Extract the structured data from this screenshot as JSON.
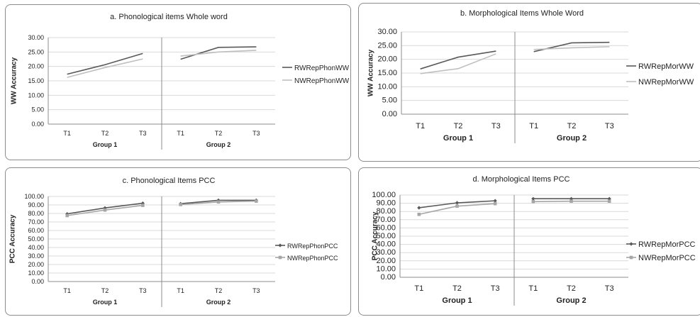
{
  "chart_data": [
    {
      "id": "a",
      "type": "line",
      "title": "a. Phonological items Whole word",
      "ylabel": "WW Accuracy",
      "xlabel": "",
      "ylim": [
        0,
        30
      ],
      "yticks": [
        "0.00",
        "5.00",
        "10.00",
        "15.00",
        "20.00",
        "25.00",
        "30.00"
      ],
      "groups": [
        {
          "label": "Group 1",
          "categories": [
            "T1",
            "T2",
            "T3"
          ]
        },
        {
          "label": "Group 2",
          "categories": [
            "T1",
            "T2",
            "T3"
          ]
        }
      ],
      "markers": false,
      "grid": true,
      "legend_position": "right",
      "series": [
        {
          "name": "RWRepPhonWW",
          "color": "#595959",
          "values": [
            [
              17.3,
              20.6,
              24.5
            ],
            [
              22.5,
              26.6,
              26.8
            ]
          ]
        },
        {
          "name": "NWRepPhonWW",
          "color": "#bfbfbf",
          "values": [
            [
              16.2,
              19.6,
              22.6
            ],
            [
              23.6,
              25.0,
              25.6
            ]
          ]
        }
      ]
    },
    {
      "id": "b",
      "type": "line",
      "title": "b. Morphological Items Whole Word",
      "ylabel": "WW Accuracy",
      "xlabel": "",
      "ylim": [
        0,
        30
      ],
      "yticks": [
        "0.00",
        "5.00",
        "10.00",
        "15.00",
        "20.00",
        "25.00",
        "30.00"
      ],
      "groups": [
        {
          "label": "Group 1",
          "categories": [
            "T1",
            "T2",
            "T3"
          ]
        },
        {
          "label": "Group 2",
          "categories": [
            "T1",
            "T2",
            "T3"
          ]
        }
      ],
      "markers": false,
      "grid": true,
      "legend_position": "right",
      "series": [
        {
          "name": "RWRepMorWW",
          "color": "#595959",
          "values": [
            [
              16.5,
              20.8,
              23.0
            ],
            [
              22.8,
              26.0,
              26.2
            ]
          ]
        },
        {
          "name": "NWRepMorWW",
          "color": "#bfbfbf",
          "values": [
            [
              14.8,
              16.6,
              22.0
            ],
            [
              23.6,
              24.2,
              24.6
            ]
          ]
        }
      ]
    },
    {
      "id": "c",
      "type": "line",
      "title": "c. Phonological Items PCC",
      "ylabel": "PCC Accuracy",
      "xlabel": "",
      "ylim": [
        0,
        100
      ],
      "yticks": [
        "0.00",
        "10.00",
        "20.00",
        "30.00",
        "40.00",
        "50.00",
        "60.00",
        "70.00",
        "80.00",
        "90.00",
        "100.00"
      ],
      "groups": [
        {
          "label": "Group 1",
          "categories": [
            "T1",
            "T2",
            "T3"
          ]
        },
        {
          "label": "Group 2",
          "categories": [
            "T1",
            "T2",
            "T3"
          ]
        }
      ],
      "markers": true,
      "grid": true,
      "legend_position": "right",
      "series": [
        {
          "name": "RWRepPhonPCC",
          "color": "#595959",
          "marker": "diamond",
          "values": [
            [
              79.5,
              86.5,
              92.0
            ],
            [
              91.5,
              95.5,
              95.5
            ]
          ]
        },
        {
          "name": "NWRepPhonPCC",
          "color": "#a6a6a6",
          "marker": "square",
          "values": [
            [
              77.5,
              84.0,
              89.5
            ],
            [
              90.5,
              93.5,
              94.5
            ]
          ]
        }
      ]
    },
    {
      "id": "d",
      "type": "line",
      "title": "d. Morphological Items PCC",
      "ylabel": "PCC Accuracy",
      "xlabel": "",
      "ylim": [
        0,
        100
      ],
      "yticks": [
        "0.00",
        "10.00",
        "20.00",
        "30.00",
        "40.00",
        "50.00",
        "60.00",
        "70.00",
        "80.00",
        "90.00",
        "100.00"
      ],
      "groups": [
        {
          "label": "Group 1",
          "categories": [
            "T1",
            "T2",
            "T3"
          ]
        },
        {
          "label": "Group 2",
          "categories": [
            "T1",
            "T2",
            "T3"
          ]
        }
      ],
      "markers": true,
      "grid": true,
      "legend_position": "right",
      "series": [
        {
          "name": "RWRepMorPCC",
          "color": "#595959",
          "marker": "diamond",
          "values": [
            [
              84.5,
              90.5,
              93.0
            ],
            [
              95.5,
              95.5,
              95.5
            ]
          ]
        },
        {
          "name": "NWRepMorPCC",
          "color": "#a6a6a6",
          "marker": "square",
          "values": [
            [
              76.5,
              86.5,
              89.5
            ],
            [
              92.0,
              92.5,
              92.5
            ]
          ]
        }
      ]
    }
  ]
}
